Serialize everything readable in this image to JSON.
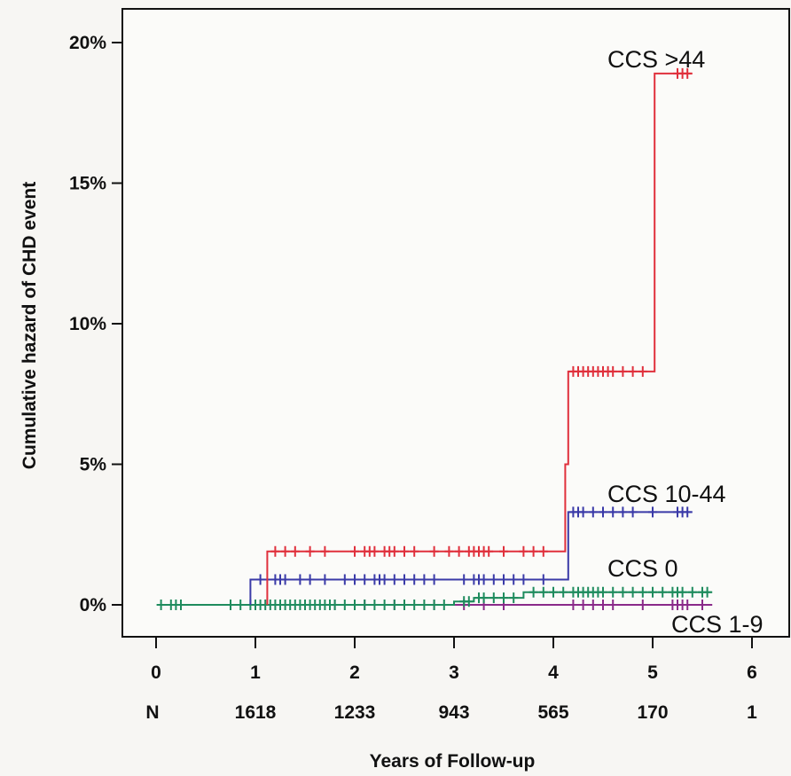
{
  "chart_data": {
    "type": "line",
    "title": "",
    "xlabel": "Years of Follow-up",
    "ylabel": "Cumulative hazard of CHD event",
    "xlim": [
      -0.5,
      6.3
    ],
    "ylim": [
      -1,
      21
    ],
    "x_ticks": [
      0,
      1,
      2,
      3,
      4,
      5,
      6
    ],
    "y_ticks": [
      0,
      5,
      10,
      15,
      20
    ],
    "y_tick_labels": [
      "0%",
      "5%",
      "10%",
      "15%",
      "20%"
    ],
    "at_risk": {
      "label": "N",
      "values": [
        "1618",
        "1233",
        "943",
        "565",
        "170",
        "1"
      ],
      "at_years": [
        1,
        2,
        3,
        4,
        5,
        6
      ]
    },
    "grid": false,
    "series": [
      {
        "name": "CCS >44",
        "color": "#e0303c",
        "steps": [
          [
            1.12,
            0
          ],
          [
            1.12,
            1.9
          ],
          [
            4.12,
            1.9
          ],
          [
            4.12,
            5.0
          ],
          [
            4.15,
            5.0
          ],
          [
            4.15,
            8.3
          ],
          [
            5.02,
            8.3
          ],
          [
            5.02,
            18.9
          ],
          [
            5.4,
            18.9
          ]
        ],
        "censored": [
          1.2,
          1.3,
          1.4,
          1.55,
          1.7,
          2.0,
          2.1,
          2.15,
          2.2,
          2.3,
          2.35,
          2.4,
          2.5,
          2.6,
          2.8,
          2.95,
          3.05,
          3.15,
          3.2,
          3.25,
          3.3,
          3.35,
          3.5,
          3.7,
          3.8,
          3.9,
          4.2,
          4.25,
          4.3,
          4.35,
          4.4,
          4.45,
          4.5,
          4.55,
          4.6,
          4.7,
          4.8,
          4.9,
          5.25,
          5.3,
          5.35
        ]
      },
      {
        "name": "CCS 10-44",
        "color": "#3a3aa8",
        "steps": [
          [
            0.95,
            0
          ],
          [
            0.95,
            0.9
          ],
          [
            4.15,
            0.9
          ],
          [
            4.15,
            3.3
          ],
          [
            5.4,
            3.3
          ]
        ],
        "censored": [
          1.05,
          1.2,
          1.25,
          1.3,
          1.45,
          1.55,
          1.7,
          1.9,
          2.0,
          2.1,
          2.2,
          2.25,
          2.3,
          2.4,
          2.5,
          2.6,
          2.7,
          2.8,
          3.1,
          3.2,
          3.25,
          3.3,
          3.4,
          3.5,
          3.6,
          3.7,
          3.9,
          4.2,
          4.25,
          4.3,
          4.4,
          4.5,
          4.6,
          4.7,
          4.8,
          5.0,
          5.25,
          5.3,
          5.35
        ]
      },
      {
        "name": "CCS 0",
        "color": "#1f8c5e",
        "steps": [
          [
            0.05,
            0
          ],
          [
            3.0,
            0
          ],
          [
            3.0,
            0.12
          ],
          [
            3.2,
            0.12
          ],
          [
            3.2,
            0.25
          ],
          [
            3.7,
            0.25
          ],
          [
            3.7,
            0.45
          ],
          [
            5.6,
            0.45
          ]
        ],
        "censored": [
          0.05,
          0.15,
          0.2,
          0.25,
          0.75,
          0.85,
          0.95,
          1.0,
          1.05,
          1.1,
          1.15,
          1.2,
          1.25,
          1.3,
          1.35,
          1.4,
          1.45,
          1.5,
          1.55,
          1.6,
          1.65,
          1.7,
          1.75,
          1.8,
          1.9,
          2.0,
          2.1,
          2.2,
          2.3,
          2.4,
          2.5,
          2.6,
          2.7,
          2.8,
          2.9,
          3.1,
          3.15,
          3.25,
          3.3,
          3.4,
          3.5,
          3.6,
          3.8,
          3.9,
          4.0,
          4.1,
          4.2,
          4.25,
          4.3,
          4.35,
          4.4,
          4.45,
          4.5,
          4.6,
          4.7,
          4.8,
          4.9,
          5.0,
          5.1,
          5.2,
          5.25,
          5.3,
          5.4,
          5.5,
          5.55
        ]
      },
      {
        "name": "CCS 1-9",
        "color": "#8a2a8a",
        "steps": [
          [
            1.1,
            0
          ],
          [
            5.6,
            0
          ]
        ],
        "censored": [
          1.25,
          1.5,
          1.8,
          2.1,
          2.4,
          2.8,
          3.1,
          3.3,
          3.5,
          4.2,
          4.3,
          4.4,
          4.5,
          4.6,
          4.9,
          5.2,
          5.25,
          5.3,
          5.35,
          5.5
        ]
      }
    ]
  }
}
